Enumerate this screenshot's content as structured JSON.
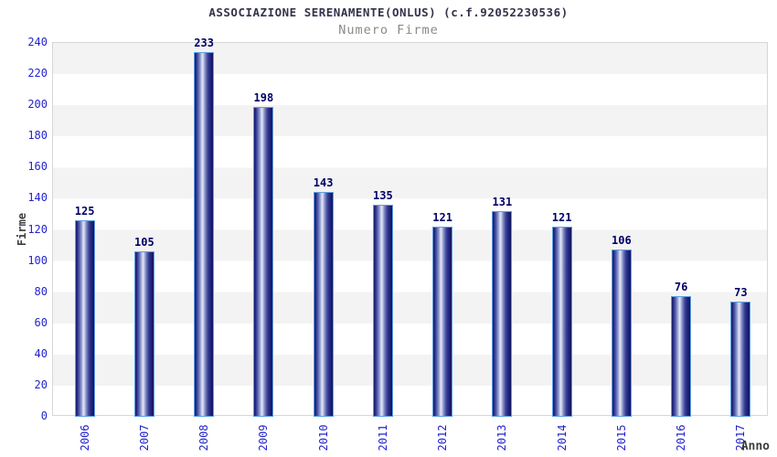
{
  "chart_data": {
    "type": "bar",
    "title": "ASSOCIAZIONE SERENAMENTE(ONLUS) (c.f.92052230536)",
    "subtitle": "Numero Firme",
    "xlabel": "Anno",
    "ylabel": "Firme",
    "categories": [
      "2006",
      "2007",
      "2008",
      "2009",
      "2010",
      "2011",
      "2012",
      "2013",
      "2014",
      "2015",
      "2016",
      "2017"
    ],
    "values": [
      125,
      105,
      233,
      198,
      143,
      135,
      121,
      131,
      121,
      106,
      76,
      73
    ],
    "ylim": [
      0,
      240
    ],
    "ytick_step": 20,
    "legend": "none",
    "grid": "alternating-horizontal-bands",
    "colors": {
      "bar_dark": "#171b6d",
      "bar_light": "#e2e6f4",
      "bar_border": "#5e9fe0",
      "tick_text": "#2323cc",
      "value_label": "#000066",
      "title_text": "#33334d",
      "subtitle_text": "#8a8a8a",
      "axis_label_text": "#3d3d3d",
      "band_gray": "#f3f3f3",
      "band_white": "#ffffff",
      "plot_border": "#d6d6d6"
    }
  }
}
